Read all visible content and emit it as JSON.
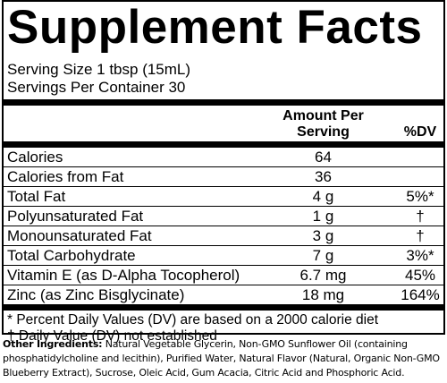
{
  "header": {
    "title": "Supplement Facts",
    "serving_size": "Serving Size 1 tbsp (15mL)",
    "servings_per_container": "Servings Per Container 30"
  },
  "table": {
    "amount_header": "Amount Per Serving",
    "dv_header": "%DV",
    "rows": [
      {
        "name": "Calories",
        "amount": "64"
      },
      {
        "name": "Calories from Fat",
        "amount": "36"
      },
      {
        "name": "Total Fat",
        "amount": "4 g",
        "dv": "5%*"
      },
      {
        "name": "Polyunsaturated Fat",
        "amount": "1 g",
        "dv": "†"
      },
      {
        "name": "Monounsaturated Fat",
        "amount": "3 g",
        "dv": "†"
      },
      {
        "name": "Total Carbohydrate",
        "amount": "7 g",
        "dv": "3%*"
      },
      {
        "name": "Vitamin E (as D-Alpha Tocopherol)",
        "amount": "6.7 mg",
        "dv": "45%"
      },
      {
        "name": "Zinc (as Zinc Bisglycinate)",
        "amount": "18 mg",
        "dv": "164%"
      }
    ]
  },
  "footnotes": [
    "* Percent Daily Values (DV) are based on a 2000 calorie diet",
    "† Daily Value (DV) not established"
  ],
  "other_ingredients": {
    "label": "Other Ingredients:",
    "text": "Natural Vegetable Glycerin, Non-GMO Sunflower Oil (containing phosphatidylcholine and lecithin), Purified Water, Natural Flavor (Natural, Organic Non-GMO Blueberry Extract), Sucrose, Oleic Acid, Gum Acacia, Citric Acid and Phosphoric Acid."
  }
}
